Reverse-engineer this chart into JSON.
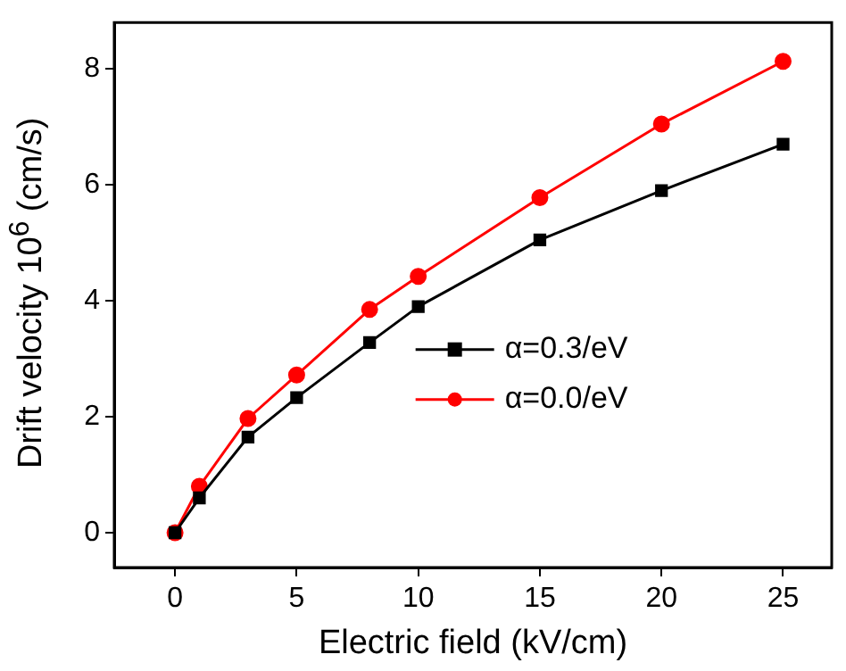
{
  "chart_data": {
    "type": "line",
    "xlabel": "Electric field (kV/cm)",
    "ylabel": "Drift velocity 10$^{6}$ (cm/s)",
    "x": [
      0,
      1,
      3,
      5,
      8,
      10,
      15,
      20,
      25
    ],
    "series": [
      {
        "name": "α=0.3/eV",
        "color": "#000000",
        "marker": "square",
        "values": [
          0,
          0.6,
          1.65,
          2.33,
          3.28,
          3.9,
          5.05,
          5.9,
          6.7
        ]
      },
      {
        "name": "α=0.0/eV",
        "color": "#ff0000",
        "marker": "circle",
        "values": [
          0,
          0.8,
          1.97,
          2.72,
          3.85,
          4.42,
          5.78,
          7.05,
          8.13
        ]
      }
    ],
    "xlim": [
      -2.5,
      27
    ],
    "xticks": [
      0,
      5,
      10,
      15,
      20,
      25
    ],
    "ylim": [
      -0.6,
      8.8
    ],
    "yticks": [
      0,
      2,
      4,
      6,
      8
    ],
    "grid": false,
    "legend": "right",
    "line_style": "solid"
  }
}
